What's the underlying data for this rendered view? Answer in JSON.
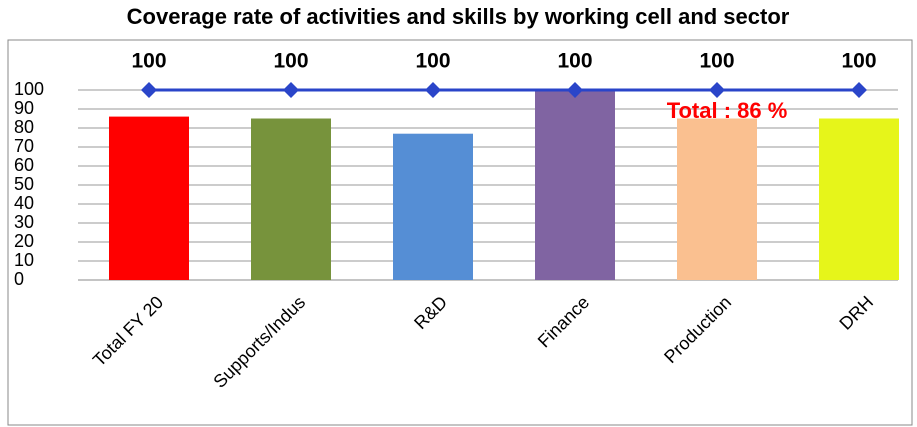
{
  "chart_data": {
    "type": "combo",
    "title": "Coverage rate of activities and skills by working cell and sector",
    "categories": [
      "Total FY 20",
      "Supports/Indus",
      "R&D",
      "Finance",
      "Production",
      "DRH"
    ],
    "series": [
      {
        "type": "bar",
        "colors": [
          "#ff0000",
          "#77933c",
          "#558ed5",
          "#8064a2",
          "#fac090",
          "#e6f51a"
        ],
        "values": [
          86,
          85,
          77,
          100,
          85,
          85
        ]
      },
      {
        "type": "line",
        "color": "#2a45c9",
        "values": [
          100,
          100,
          100,
          100,
          100,
          100
        ]
      }
    ],
    "annotation": "Total : 86 %",
    "ylim": [
      0,
      100
    ],
    "yticks": [
      0,
      10,
      20,
      30,
      40,
      50,
      60,
      70,
      80,
      90,
      100
    ],
    "grid": true
  }
}
